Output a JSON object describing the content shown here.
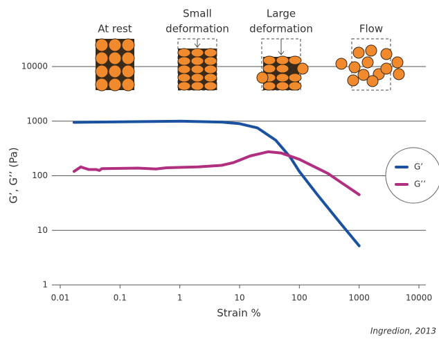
{
  "chart_data": {
    "type": "line",
    "xlabel": "Strain %",
    "ylabel": "G’, G’’ (Pa)",
    "source": "Ingredion, 2013",
    "stages": [
      [
        "At rest"
      ],
      [
        "Small",
        "deformation"
      ],
      [
        "Large",
        "deformation"
      ],
      [
        "Flow"
      ]
    ],
    "xscale": "log",
    "yscale": "log",
    "grid": true,
    "xlim": [
      0.01,
      10000
    ],
    "xticks": [
      0.01,
      0.1,
      1,
      10,
      100,
      1000,
      10000
    ],
    "ylim": [
      1,
      10000
    ],
    "yticks": [
      1,
      10,
      100,
      1000,
      10000
    ],
    "series": [
      {
        "name": "G’",
        "color": "#1b529f",
        "x": [
          0.017,
          0.1,
          1,
          5,
          10,
          20,
          40,
          70,
          100,
          200,
          500,
          1000
        ],
        "values": [
          950,
          970,
          1000,
          960,
          900,
          750,
          450,
          220,
          120,
          45,
          13,
          5.2
        ]
      },
      {
        "name": "G’’",
        "color": "#b12f7f",
        "x": [
          0.017,
          0.022,
          0.03,
          0.04,
          0.045,
          0.05,
          0.2,
          0.4,
          0.6,
          2,
          5,
          8,
          15,
          30,
          50,
          100,
          300,
          1000
        ],
        "values": [
          120,
          145,
          130,
          130,
          125,
          135,
          138,
          133,
          140,
          145,
          155,
          175,
          230,
          275,
          260,
          200,
          110,
          45
        ]
      }
    ]
  }
}
